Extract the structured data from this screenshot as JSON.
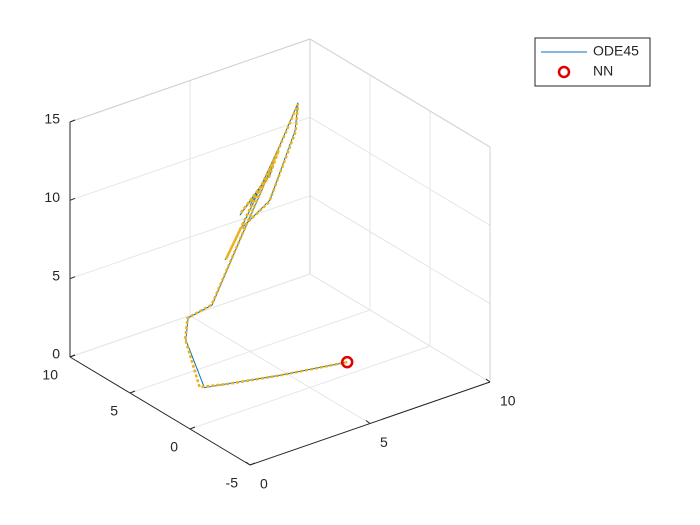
{
  "chart_data": {
    "type": "line3d",
    "xlim": [
      0,
      10
    ],
    "ylim": [
      -5,
      10
    ],
    "zlim": [
      0,
      15
    ],
    "xticks": [
      0,
      5,
      10
    ],
    "yticks": [
      -5,
      0,
      5,
      10
    ],
    "zticks": [
      0,
      5,
      10,
      15
    ],
    "grid": true,
    "legend": "northeast",
    "series": [
      {
        "name": "ODE45",
        "color": "#0072bd",
        "style": "line",
        "x": [
          7.1,
          4.75,
          3.08,
          2.2,
          2.83,
          2.92,
          3.92,
          5.08,
          6.0,
          6.75,
          7.5,
          7.38,
          6.33,
          5.08,
          4.46,
          5.5,
          6.67,
          6.33,
          5.71,
          5.08,
          6.13,
          5.5
        ],
        "y": [
          1.1,
          2.0,
          2.8,
          3.2,
          6,
          6,
          6,
          6,
          6,
          6,
          6,
          6,
          6,
          6,
          6,
          6,
          6,
          6,
          6,
          6,
          6,
          6
        ],
        "z": [
          0,
          0,
          0,
          0,
          1.42,
          2.78,
          3.08,
          6.62,
          9.32,
          11.8,
          14.1,
          12.4,
          8.5,
          7.26,
          5.67,
          8.3,
          11.6,
          10.1,
          9.15,
          8.2,
          9.9,
          8.6
        ]
      },
      {
        "name": "NN",
        "color": "#e00000",
        "style": "marker",
        "x": [
          7.1
        ],
        "y": [
          1.1
        ],
        "z": [
          0
        ]
      },
      {
        "color": "#edb120",
        "style": "dotted",
        "x": [
          7.1,
          4.7,
          3.0,
          2.1,
          2.8,
          2.9,
          3.9,
          5.1,
          6.0,
          6.8,
          7.5,
          7.4,
          6.3,
          5.1,
          4.5,
          5.5,
          6.7,
          6.3,
          5.7,
          5.1,
          6.1,
          5.5
        ],
        "y": [
          1.1,
          2.0,
          2.8,
          3.4,
          6,
          6,
          6,
          6,
          6,
          6,
          6,
          6,
          6,
          6,
          6,
          6,
          6,
          6,
          6,
          6,
          6,
          6
        ],
        "z": [
          0,
          0,
          0,
          0,
          1.5,
          2.8,
          3.1,
          6.7,
          9.4,
          11.9,
          14.0,
          12.3,
          8.4,
          7.3,
          5.7,
          8.4,
          11.5,
          10.0,
          9.2,
          8.3,
          9.8,
          8.7
        ]
      }
    ]
  }
}
